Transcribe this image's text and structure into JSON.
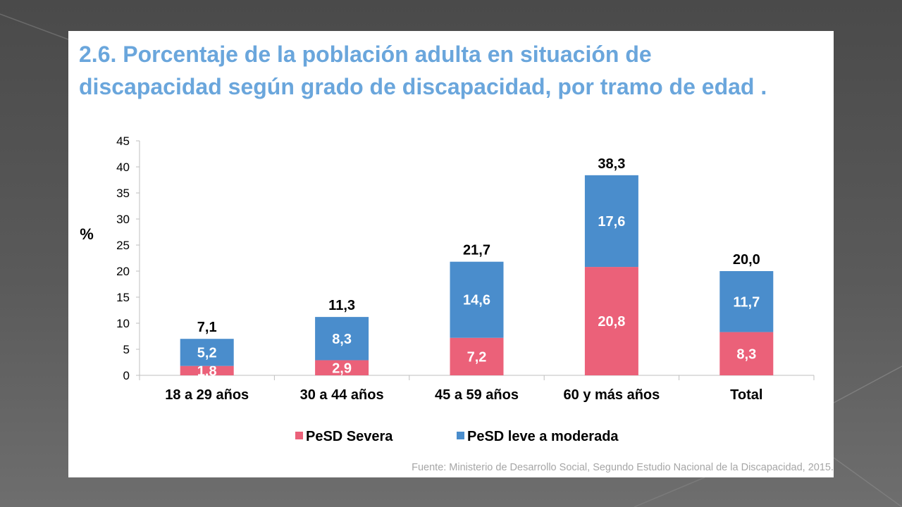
{
  "title_lines": [
    "2.6. Porcentaje de la población adulta en situación de",
    "discapacidad según grado de discapacidad, por tramo de edad ."
  ],
  "source": "Fuente: Ministerio de Desarrollo Social, Segundo Estudio Nacional de la Discapacidad, 2015.",
  "colors": {
    "title": "#6aa6dc",
    "severa": "#eb6179",
    "leve": "#4a8dcc",
    "source": "#a6a6a6"
  },
  "chart_data": {
    "type": "bar",
    "stacked": true,
    "ylabel": "%",
    "ylim": [
      0,
      45
    ],
    "yticks": [
      "0",
      "5",
      "10",
      "15",
      "20",
      "25",
      "30",
      "35",
      "40",
      "45"
    ],
    "categories": [
      "18 a 29 años",
      "30 a 44 años",
      "45 a 59 años",
      "60 y más años",
      "Total"
    ],
    "series": [
      {
        "name": "PeSD Severa",
        "color": "#eb6179",
        "values": [
          1.8,
          2.9,
          7.2,
          20.8,
          8.3
        ],
        "labels": [
          "1,8",
          "2,9",
          "7,2",
          "20,8",
          "8,3"
        ]
      },
      {
        "name": "PeSD leve a moderada",
        "color": "#4a8dcc",
        "values": [
          5.2,
          8.3,
          14.6,
          17.6,
          11.7
        ],
        "labels": [
          "5,2",
          "8,3",
          "14,6",
          "17,6",
          "11,7"
        ]
      }
    ],
    "totals": [
      "7,1",
      "11,3",
      "21,7",
      "38,3",
      "20,0"
    ],
    "grid": false,
    "legend": "bottom"
  }
}
